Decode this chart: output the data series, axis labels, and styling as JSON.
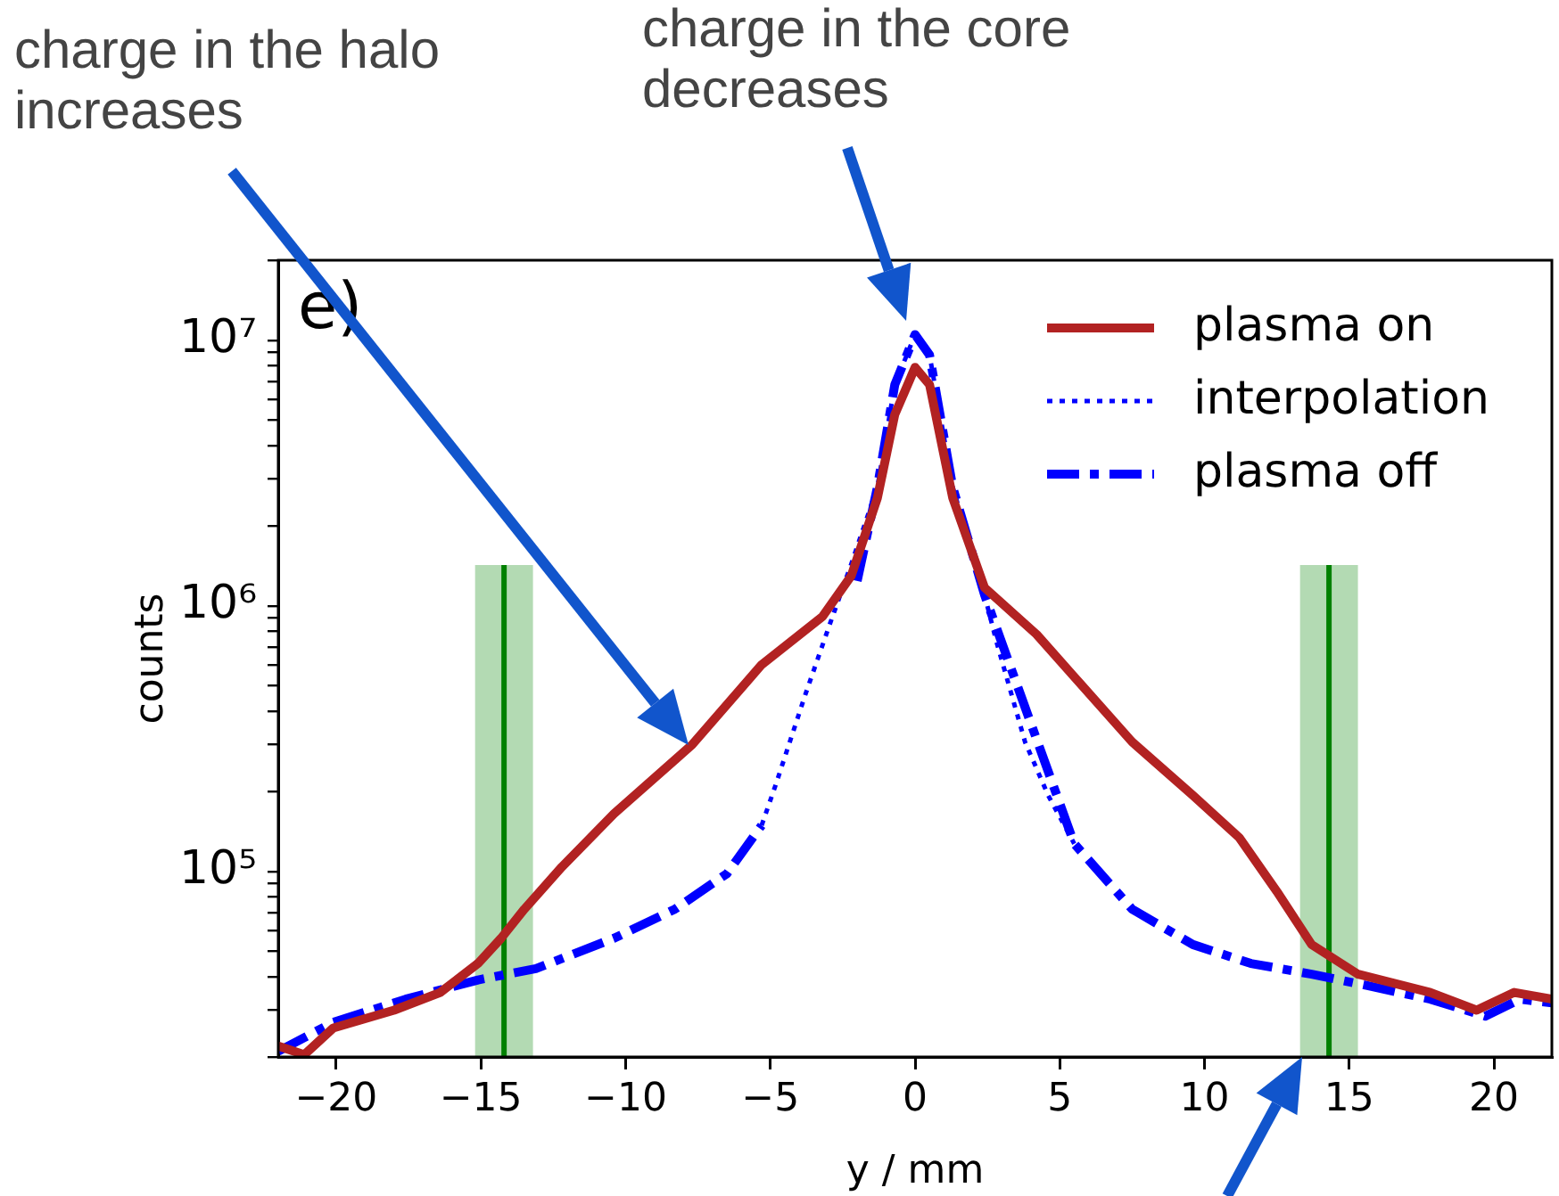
{
  "chart_data": {
    "type": "line",
    "xlabel": "y / mm",
    "ylabel": "counts",
    "annotations": [
      "charge in the halo increases",
      "charge in the core decreases",
      "e)"
    ],
    "xlim": [
      -22,
      22
    ],
    "xticks": [
      {
        "value": -20,
        "label": "−20"
      },
      {
        "value": -15,
        "label": "−15"
      },
      {
        "value": -10,
        "label": "−10"
      },
      {
        "value": -5,
        "label": "−5"
      },
      0,
      5,
      10,
      15,
      20
    ],
    "ylim": [
      20000,
      20000000
    ],
    "log": "y",
    "yticks": [
      {
        "value": 20000,
        "label": null
      },
      {
        "value": 30000,
        "label": null
      },
      {
        "value": 40000,
        "label": null
      },
      {
        "value": 50000,
        "label": null
      },
      {
        "value": 60000,
        "label": null
      },
      {
        "value": 70000,
        "label": null
      },
      {
        "value": 80000,
        "label": null
      },
      {
        "value": 90000,
        "label": null
      },
      {
        "value": 100000,
        "label": "10⁵"
      },
      {
        "value": 200000,
        "label": null
      },
      {
        "value": 300000,
        "label": null
      },
      {
        "value": 400000,
        "label": null
      },
      {
        "value": 500000,
        "label": null
      },
      {
        "value": 600000,
        "label": null
      },
      {
        "value": 700000,
        "label": null
      },
      {
        "value": 800000,
        "label": null
      },
      {
        "value": 900000,
        "label": null
      },
      {
        "value": 1000000,
        "label": "10⁶"
      },
      {
        "value": 2000000,
        "label": null
      },
      {
        "value": 3000000,
        "label": null
      },
      {
        "value": 4000000,
        "label": null
      },
      {
        "value": 5000000,
        "label": null
      },
      {
        "value": 6000000,
        "label": null
      },
      {
        "value": 7000000,
        "label": null
      },
      {
        "value": 8000000,
        "label": null
      },
      {
        "value": 9000000,
        "label": null
      },
      {
        "value": 10000000,
        "label": "10⁷"
      },
      {
        "value": 20000000,
        "label": null
      }
    ],
    "grid": false,
    "legend": "top right",
    "marker": "none",
    "ref_lines": [
      {
        "axis": "x",
        "value": -14.2,
        "color": "#008000"
      },
      {
        "axis": "x",
        "value": 14.3,
        "color": "#008000"
      }
    ],
    "bands": [
      {
        "axis": "x",
        "from": -15.2,
        "to": -13.2,
        "color": "#b3dab3"
      },
      {
        "axis": "x",
        "from": 13.3,
        "to": 15.3,
        "color": "#b3dab3"
      }
    ],
    "series": [
      {
        "name": "plasma on",
        "color": "#b22222",
        "line_style": "solid",
        "x": [
          -22,
          -21.1,
          -20.1,
          -18,
          -16.4,
          -15.1,
          -14.3,
          -13.5,
          -12.2,
          -10.4,
          -7.7,
          -5.3,
          -3.2,
          -2.2,
          -1.3,
          -0.7,
          0,
          0.5,
          1.3,
          2.4,
          4.2,
          5.5,
          7.5,
          9.6,
          11.2,
          12.5,
          13.7,
          15.3,
          17.8,
          19.4,
          20.7,
          22
        ],
        "values": [
          22000,
          20400,
          25700,
          30000,
          35000,
          45000,
          56000,
          72000,
          104000,
          165000,
          300000,
          600000,
          910000,
          1300000,
          2550000,
          5250000,
          7900000,
          6800000,
          2550000,
          1170000,
          780000,
          540000,
          307000,
          193000,
          134000,
          84000,
          53000,
          41000,
          35000,
          30000,
          35000,
          33000
        ]
      },
      {
        "name": "interpolation",
        "color": "#0000ff",
        "line_style": "dotted",
        "x": [
          -5.3,
          -4.8,
          -3.8,
          -3,
          -2.2,
          -1.3,
          -0.7,
          0,
          0.5,
          1.3,
          2.4,
          2.8,
          3.8,
          4.6,
          5.5
        ],
        "values": [
          149000,
          214000,
          460000,
          820000,
          1440000,
          2800000,
          6800000,
          10500000,
          8800000,
          2800000,
          1100000,
          740000,
          307000,
          193000,
          127000
        ]
      },
      {
        "name": "plasma off",
        "color": "#0000ff",
        "line_style": "dashdot",
        "x": [
          -22,
          -20.1,
          -17.6,
          -15.1,
          -13.1,
          -10.4,
          -8.3,
          -6.5,
          -5.3,
          -4.8,
          -2,
          -1.3,
          -0.7,
          0,
          0.5,
          1.3,
          2.4,
          5.5,
          7.5,
          9.6,
          11.6,
          13.7,
          15.7,
          17.8,
          19.7,
          20.9,
          22
        ],
        "values": [
          21000,
          27000,
          33000,
          39000,
          43000,
          56000,
          72000,
          98000,
          149000,
          null,
          1240000,
          2800000,
          6800000,
          10500000,
          8800000,
          2800000,
          1100000,
          127000,
          72000,
          53000,
          45000,
          41000,
          37000,
          33000,
          28500,
          33000,
          32000
        ]
      }
    ]
  }
}
